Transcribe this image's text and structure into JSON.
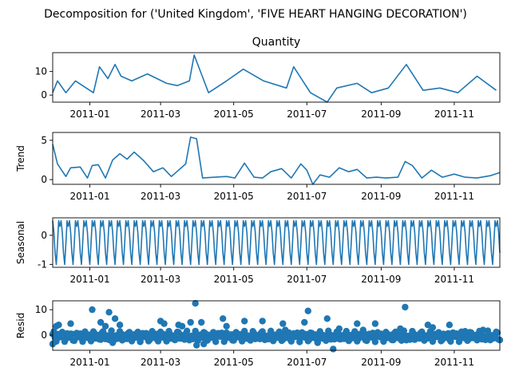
{
  "figure": {
    "suptitle": "Decomposition for ('United Kingdom', 'FIVE HEART HANGING DECORATION')",
    "series_color": "#1f77b4"
  },
  "chart_data": [
    {
      "type": "line",
      "title": "Quantity",
      "ylabel": "",
      "xlim": [
        "2010-12-01",
        "2011-12-09"
      ],
      "ylim": [
        -3,
        18
      ],
      "yticks": [
        0,
        10
      ],
      "xticks": [
        "2011-01",
        "2011-03",
        "2011-05",
        "2011-07",
        "2011-09",
        "2011-11"
      ],
      "x": [
        "2010-12-01",
        "2010-12-05",
        "2010-12-12",
        "2010-12-20",
        "2011-01-04",
        "2011-01-09",
        "2011-01-16",
        "2011-01-22",
        "2011-01-27",
        "2011-02-05",
        "2011-02-18",
        "2011-03-06",
        "2011-03-15",
        "2011-03-25",
        "2011-03-29",
        "2011-04-10",
        "2011-04-25",
        "2011-05-09",
        "2011-05-26",
        "2011-06-14",
        "2011-06-20",
        "2011-07-04",
        "2011-07-18",
        "2011-07-26",
        "2011-08-12",
        "2011-08-24",
        "2011-09-07",
        "2011-09-22",
        "2011-10-06",
        "2011-10-20",
        "2011-11-04",
        "2011-11-20",
        "2011-12-06"
      ],
      "y": [
        1,
        6,
        1,
        6,
        1,
        12,
        7,
        13,
        8,
        6,
        9,
        5,
        4,
        6,
        17,
        1,
        6,
        11,
        6,
        3,
        12,
        1,
        -3,
        3,
        5,
        1,
        3,
        13,
        2,
        3,
        1,
        8,
        2
      ]
    },
    {
      "type": "line",
      "title": "",
      "ylabel": "Trend",
      "xlim": [
        "2010-12-01",
        "2011-12-09"
      ],
      "ylim": [
        -0.6,
        6
      ],
      "yticks": [
        0,
        5
      ],
      "xticks": [
        "2011-01",
        "2011-03",
        "2011-05",
        "2011-07",
        "2011-09",
        "2011-11"
      ],
      "x": [
        "2010-12-01",
        "2010-12-05",
        "2010-12-12",
        "2010-12-16",
        "2010-12-24",
        "2010-12-30",
        "2011-01-03",
        "2011-01-08",
        "2011-01-14",
        "2011-01-20",
        "2011-01-26",
        "2011-02-01",
        "2011-02-07",
        "2011-02-15",
        "2011-02-23",
        "2011-03-03",
        "2011-03-10",
        "2011-03-16",
        "2011-03-22",
        "2011-03-26",
        "2011-03-31",
        "2011-04-05",
        "2011-04-15",
        "2011-04-25",
        "2011-05-02",
        "2011-05-10",
        "2011-05-18",
        "2011-05-25",
        "2011-06-01",
        "2011-06-10",
        "2011-06-18",
        "2011-06-26",
        "2011-07-01",
        "2011-07-06",
        "2011-07-12",
        "2011-07-20",
        "2011-07-28",
        "2011-08-05",
        "2011-08-12",
        "2011-08-20",
        "2011-08-28",
        "2011-09-05",
        "2011-09-15",
        "2011-09-21",
        "2011-09-27",
        "2011-10-05",
        "2011-10-13",
        "2011-10-22",
        "2011-11-01",
        "2011-11-10",
        "2011-11-20",
        "2011-12-01",
        "2011-12-09"
      ],
      "y": [
        4.5,
        2.0,
        0.4,
        1.5,
        1.6,
        0.2,
        1.8,
        1.9,
        0.2,
        2.5,
        3.3,
        2.6,
        3.5,
        2.4,
        1.0,
        1.5,
        0.4,
        1.2,
        2.0,
        5.4,
        5.2,
        0.2,
        0.3,
        0.4,
        0.2,
        2.1,
        0.3,
        0.2,
        1.0,
        1.4,
        0.2,
        2.0,
        1.2,
        -0.6,
        0.6,
        0.3,
        1.5,
        1.0,
        1.3,
        0.2,
        0.3,
        0.2,
        0.3,
        2.3,
        1.8,
        0.2,
        1.2,
        0.3,
        0.7,
        0.3,
        0.2,
        0.5,
        0.9
      ]
    },
    {
      "type": "line",
      "title": "",
      "ylabel": "Seasonal",
      "xlim": [
        "2010-12-01",
        "2011-12-09"
      ],
      "ylim": [
        -1.1,
        0.6
      ],
      "yticks": [
        -1,
        0
      ],
      "xticks": [
        "2011-01",
        "2011-03",
        "2011-05",
        "2011-07",
        "2011-09",
        "2011-11"
      ],
      "period_days": 7,
      "pattern": [
        0.5,
        0.1,
        -0.6,
        -1.0,
        -0.3,
        0.5,
        0.3
      ]
    },
    {
      "type": "scatter",
      "title": "",
      "ylabel": "Resid",
      "xlim": [
        "2010-12-01",
        "2011-12-09"
      ],
      "ylim": [
        -6,
        13.5
      ],
      "yticks": [
        0,
        10
      ],
      "xticks": [
        "2011-01",
        "2011-03",
        "2011-05",
        "2011-07",
        "2011-09",
        "2011-11"
      ],
      "baseline": -0.5,
      "points": [
        [
          "2010-12-01",
          -3.5
        ],
        [
          "2010-12-04",
          3.5
        ],
        [
          "2010-12-06",
          4.0
        ],
        [
          "2010-12-16",
          4.5
        ],
        [
          "2011-01-03",
          10.0
        ],
        [
          "2011-01-10",
          5.0
        ],
        [
          "2011-01-14",
          3.5
        ],
        [
          "2011-01-17",
          9.0
        ],
        [
          "2011-01-20",
          -3.0
        ],
        [
          "2011-01-22",
          6.5
        ],
        [
          "2011-01-26",
          4.0
        ],
        [
          "2011-02-01",
          -1.5
        ],
        [
          "2011-02-12",
          -2.5
        ],
        [
          "2011-02-22",
          1.5
        ],
        [
          "2011-03-01",
          5.5
        ],
        [
          "2011-03-04",
          4.5
        ],
        [
          "2011-03-16",
          4.0
        ],
        [
          "2011-03-19",
          3.5
        ],
        [
          "2011-03-26",
          5.0
        ],
        [
          "2011-03-30",
          12.5
        ],
        [
          "2011-03-31",
          -4.0
        ],
        [
          "2011-04-04",
          5.0
        ],
        [
          "2011-04-06",
          -3.5
        ],
        [
          "2011-04-22",
          6.5
        ],
        [
          "2011-04-25",
          3.5
        ],
        [
          "2011-05-10",
          5.5
        ],
        [
          "2011-05-25",
          5.5
        ],
        [
          "2011-06-11",
          4.5
        ],
        [
          "2011-06-13",
          2.0
        ],
        [
          "2011-06-29",
          5.0
        ],
        [
          "2011-07-02",
          9.5
        ],
        [
          "2011-07-10",
          -3.0
        ],
        [
          "2011-07-18",
          6.5
        ],
        [
          "2011-07-23",
          -5.5
        ],
        [
          "2011-07-28",
          2.5
        ],
        [
          "2011-08-12",
          4.5
        ],
        [
          "2011-08-17",
          2.0
        ],
        [
          "2011-08-27",
          4.5
        ],
        [
          "2011-09-17",
          2.5
        ],
        [
          "2011-09-21",
          11.0
        ],
        [
          "2011-09-22",
          -2.0
        ],
        [
          "2011-10-10",
          4.0
        ],
        [
          "2011-10-14",
          3.0
        ],
        [
          "2011-10-28",
          4.0
        ],
        [
          "2011-11-10",
          1.5
        ],
        [
          "2011-11-25",
          2.0
        ],
        [
          "2011-12-05",
          -0.8
        ]
      ]
    }
  ]
}
